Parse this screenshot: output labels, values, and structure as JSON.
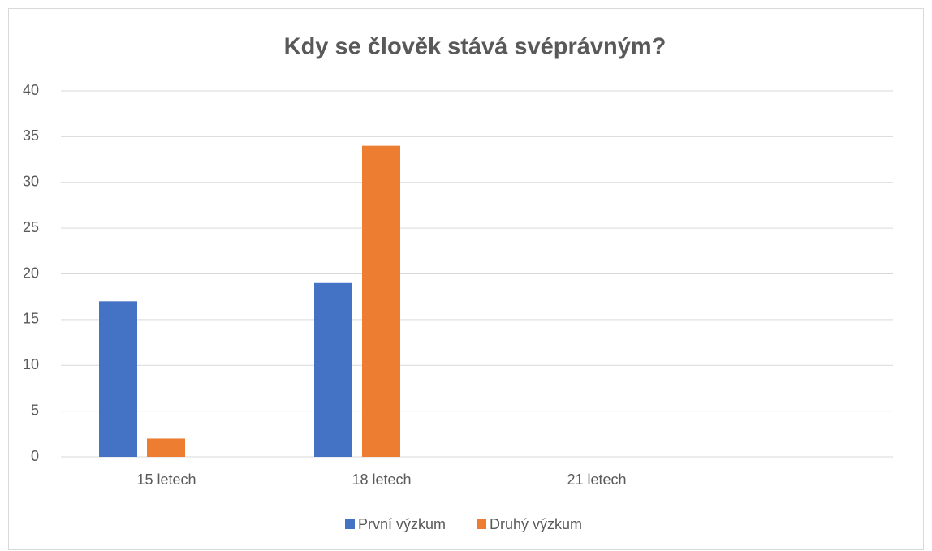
{
  "chart_data": {
    "type": "bar",
    "title": "Kdy se člověk stává svéprávným?",
    "categories": [
      "15 letech",
      "18 letech",
      "21 letech",
      null
    ],
    "series": [
      {
        "name": "První výzkum",
        "color": "#4472c4",
        "values": [
          17,
          19,
          0,
          null
        ]
      },
      {
        "name": "Druhý výzkum",
        "color": "#ed7d31",
        "values": [
          2,
          34,
          0,
          null
        ]
      }
    ],
    "ylim": [
      0,
      40
    ],
    "yticks": [
      0,
      5,
      10,
      15,
      20,
      25,
      30,
      35,
      40
    ],
    "grid": true,
    "legend": "bottom"
  }
}
